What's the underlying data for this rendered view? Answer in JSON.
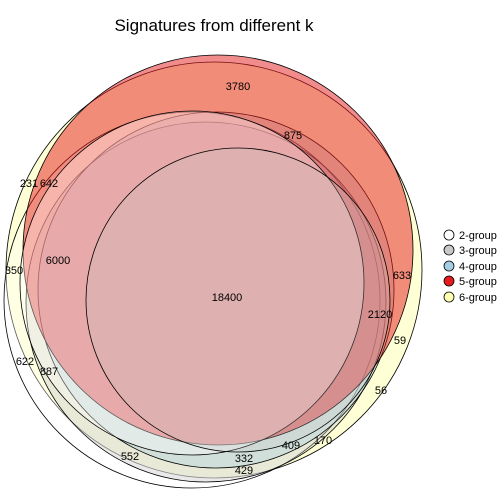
{
  "title": "Signatures from different k",
  "sets": [
    {
      "name": "2-group",
      "color": "#FFFFFF"
    },
    {
      "name": "3-group",
      "color": "#C8C8C8"
    },
    {
      "name": "4-group",
      "color": "#A6CEE3"
    },
    {
      "name": "5-group",
      "color": "#E41A1C"
    },
    {
      "name": "6-group",
      "color": "#FFFFB3"
    }
  ],
  "regions": [
    {
      "id": "r3780",
      "count": "3780"
    },
    {
      "id": "r875",
      "count": "875"
    },
    {
      "id": "r231",
      "count": "231"
    },
    {
      "id": "r642",
      "count": "642"
    },
    {
      "id": "r6000",
      "count": "6000"
    },
    {
      "id": "r350",
      "count": "350"
    },
    {
      "id": "r633",
      "count": "633"
    },
    {
      "id": "r18400",
      "count": "18400"
    },
    {
      "id": "r2120",
      "count": "2120"
    },
    {
      "id": "r59",
      "count": "59"
    },
    {
      "id": "r622",
      "count": "622"
    },
    {
      "id": "r887",
      "count": "887"
    },
    {
      "id": "r56",
      "count": "56"
    },
    {
      "id": "r170",
      "count": "170"
    },
    {
      "id": "r409",
      "count": "409"
    },
    {
      "id": "r552",
      "count": "552"
    },
    {
      "id": "r332",
      "count": "332"
    },
    {
      "id": "r429",
      "count": "429"
    }
  ]
}
